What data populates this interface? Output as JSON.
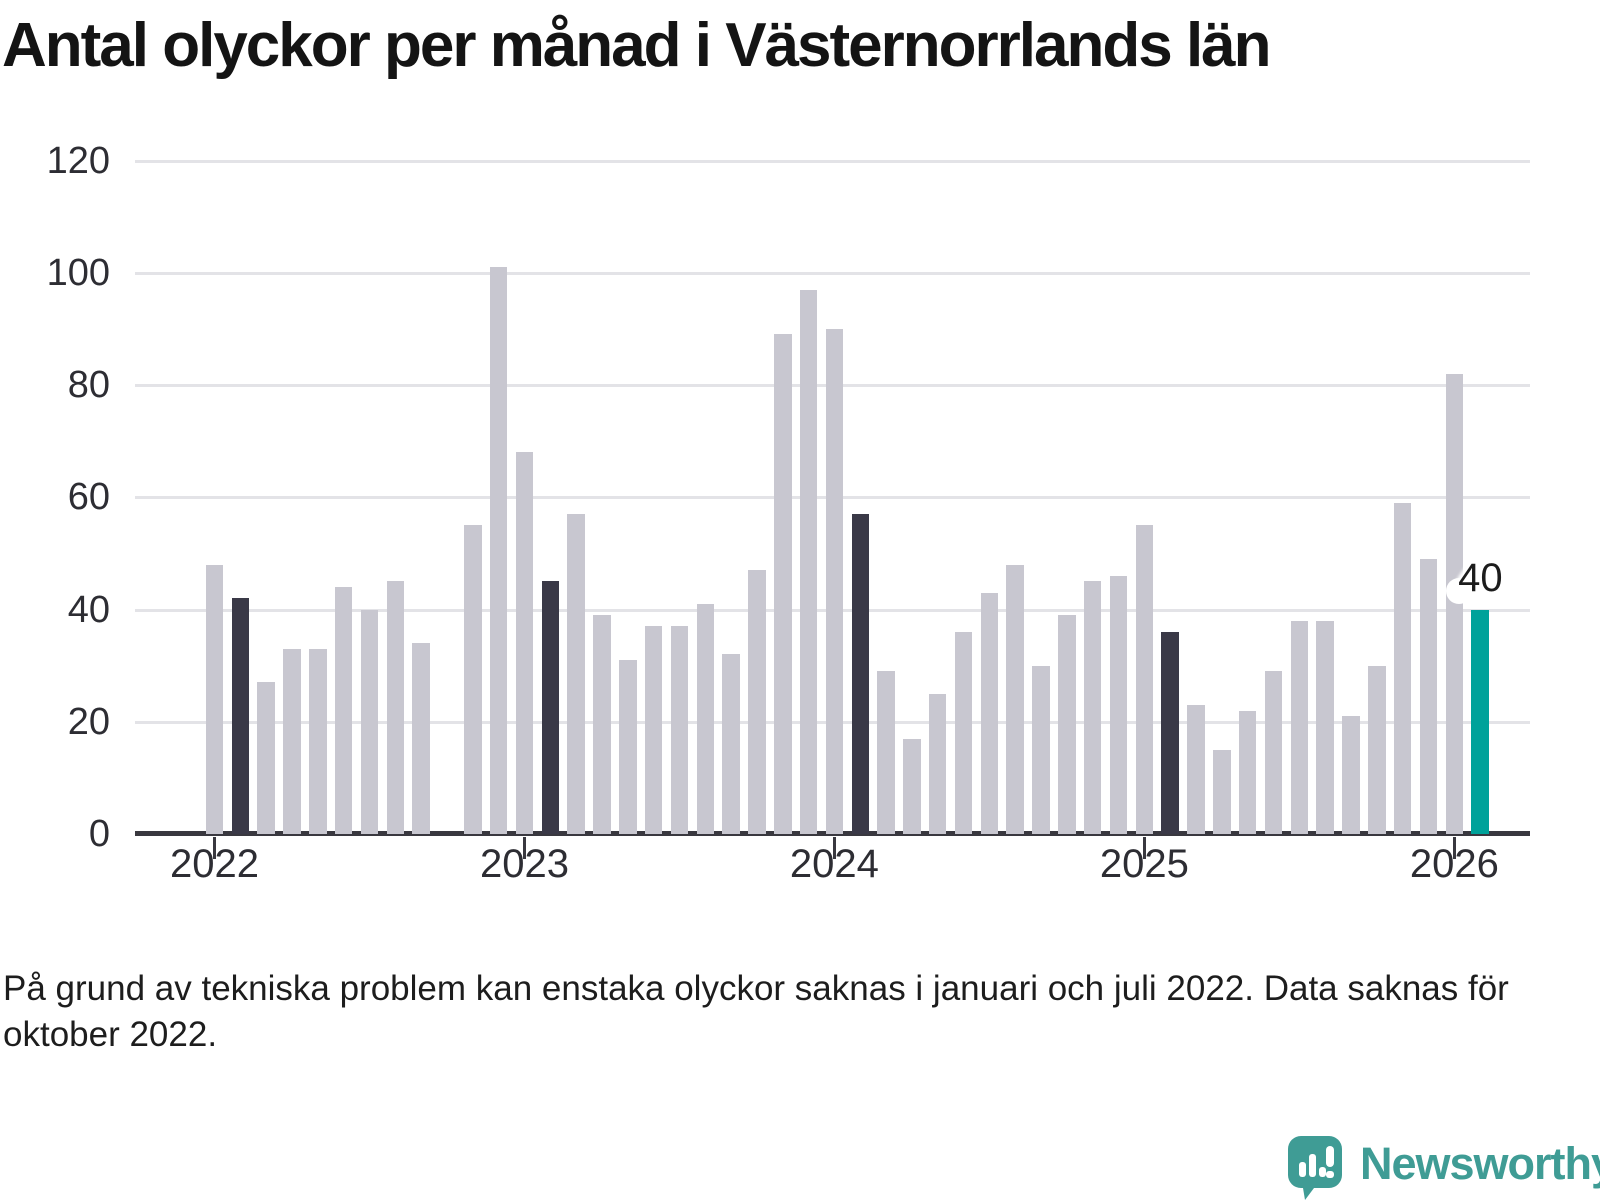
{
  "title": "Antal olyckor per månad i Västernorrlands län",
  "footnote": {
    "line1": "På grund av tekniska problem kan enstaka olyckor saknas i januari och juli 2022. Data saknas för",
    "line2": "oktober 2022."
  },
  "brand": {
    "wordmark": "Newsworthy"
  },
  "colors": {
    "bar_light": "#c8c7d0",
    "bar_dark": "#3a3947",
    "bar_teal": "#00a29a",
    "gridline": "#e3e3e7",
    "axis": "#39383f",
    "label_text": "#2d2d33",
    "logo_teal": "#3f9c95"
  },
  "chart_data": {
    "type": "bar",
    "title": "Antal olyckor per månad i Västernorrlands län",
    "xlabel": "",
    "ylabel": "",
    "ylim": [
      0,
      120
    ],
    "yticks": [
      0,
      20,
      40,
      60,
      80,
      100,
      120
    ],
    "grid": "horizontal",
    "year_ticks": [
      "2022",
      "2023",
      "2024",
      "2025",
      "2026"
    ],
    "annotation": {
      "text": "40",
      "month": "2026-02"
    },
    "note": "Oct 2022 has no bar (data missing); February bars are dark; Feb 2026 is teal highlighted",
    "months": [
      {
        "label": "2022-01",
        "value": 48,
        "role": "normal"
      },
      {
        "label": "2022-02",
        "value": 42,
        "role": "dark"
      },
      {
        "label": "2022-03",
        "value": 27,
        "role": "normal"
      },
      {
        "label": "2022-04",
        "value": 33,
        "role": "normal"
      },
      {
        "label": "2022-05",
        "value": 33,
        "role": "normal"
      },
      {
        "label": "2022-06",
        "value": 44,
        "role": "normal"
      },
      {
        "label": "2022-07",
        "value": 40,
        "role": "normal"
      },
      {
        "label": "2022-08",
        "value": 45,
        "role": "normal"
      },
      {
        "label": "2022-09",
        "value": 34,
        "role": "normal"
      },
      {
        "label": "2022-10",
        "value": null,
        "role": "missing"
      },
      {
        "label": "2022-11",
        "value": 55,
        "role": "normal"
      },
      {
        "label": "2022-12",
        "value": 101,
        "role": "normal"
      },
      {
        "label": "2023-01",
        "value": 68,
        "role": "normal"
      },
      {
        "label": "2023-02",
        "value": 45,
        "role": "dark"
      },
      {
        "label": "2023-03",
        "value": 57,
        "role": "normal"
      },
      {
        "label": "2023-04",
        "value": 39,
        "role": "normal"
      },
      {
        "label": "2023-05",
        "value": 31,
        "role": "normal"
      },
      {
        "label": "2023-06",
        "value": 37,
        "role": "normal"
      },
      {
        "label": "2023-07",
        "value": 37,
        "role": "normal"
      },
      {
        "label": "2023-08",
        "value": 41,
        "role": "normal"
      },
      {
        "label": "2023-09",
        "value": 32,
        "role": "normal"
      },
      {
        "label": "2023-10",
        "value": 47,
        "role": "normal"
      },
      {
        "label": "2023-11",
        "value": 89,
        "role": "normal"
      },
      {
        "label": "2023-12",
        "value": 97,
        "role": "normal"
      },
      {
        "label": "2024-01",
        "value": 90,
        "role": "normal"
      },
      {
        "label": "2024-02",
        "value": 57,
        "role": "dark"
      },
      {
        "label": "2024-03",
        "value": 29,
        "role": "normal"
      },
      {
        "label": "2024-04",
        "value": 17,
        "role": "normal"
      },
      {
        "label": "2024-05",
        "value": 25,
        "role": "normal"
      },
      {
        "label": "2024-06",
        "value": 36,
        "role": "normal"
      },
      {
        "label": "2024-07",
        "value": 43,
        "role": "normal"
      },
      {
        "label": "2024-08",
        "value": 48,
        "role": "normal"
      },
      {
        "label": "2024-09",
        "value": 30,
        "role": "normal"
      },
      {
        "label": "2024-10",
        "value": 39,
        "role": "normal"
      },
      {
        "label": "2024-11",
        "value": 45,
        "role": "normal"
      },
      {
        "label": "2024-12",
        "value": 46,
        "role": "normal"
      },
      {
        "label": "2025-01",
        "value": 55,
        "role": "normal"
      },
      {
        "label": "2025-02",
        "value": 36,
        "role": "dark"
      },
      {
        "label": "2025-03",
        "value": 23,
        "role": "normal"
      },
      {
        "label": "2025-04",
        "value": 15,
        "role": "normal"
      },
      {
        "label": "2025-05",
        "value": 22,
        "role": "normal"
      },
      {
        "label": "2025-06",
        "value": 29,
        "role": "normal"
      },
      {
        "label": "2025-07",
        "value": 38,
        "role": "normal"
      },
      {
        "label": "2025-08",
        "value": 38,
        "role": "normal"
      },
      {
        "label": "2025-09",
        "value": 21,
        "role": "normal"
      },
      {
        "label": "2025-10",
        "value": 30,
        "role": "normal"
      },
      {
        "label": "2025-11",
        "value": 59,
        "role": "normal"
      },
      {
        "label": "2025-12",
        "value": 49,
        "role": "normal"
      },
      {
        "label": "2026-01",
        "value": 82,
        "role": "normal"
      },
      {
        "label": "2026-02",
        "value": 40,
        "role": "teal"
      }
    ]
  }
}
